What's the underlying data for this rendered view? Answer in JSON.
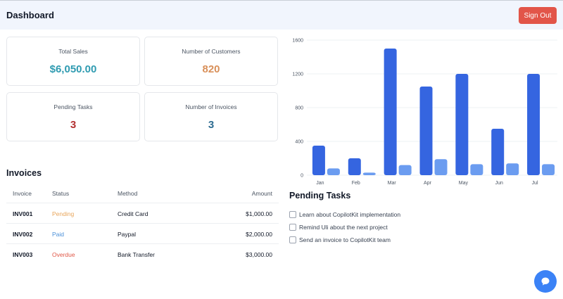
{
  "header": {
    "title": "Dashboard",
    "signout_label": "Sign Out"
  },
  "cards": [
    {
      "label": "Total Sales",
      "value": "$6,050.00",
      "color": "#2f9bb1"
    },
    {
      "label": "Number of Customers",
      "value": "820",
      "color": "#d9905a"
    },
    {
      "label": "Pending Tasks",
      "value": "3",
      "color": "#b33030"
    },
    {
      "label": "Number of Invoices",
      "value": "3",
      "color": "#2d6c91"
    }
  ],
  "invoices": {
    "title": "Invoices",
    "columns": [
      "Invoice",
      "Status",
      "Method",
      "Amount"
    ],
    "rows": [
      {
        "invoice": "INV001",
        "status": "Pending",
        "status_color": "#e8a55a",
        "method": "Credit Card",
        "amount": "$1,000.00"
      },
      {
        "invoice": "INV002",
        "status": "Paid",
        "status_color": "#4a90d9",
        "method": "Paypal",
        "amount": "$2,000.00"
      },
      {
        "invoice": "INV003",
        "status": "Overdue",
        "status_color": "#e05747",
        "method": "Bank Transfer",
        "amount": "$3,000.00"
      }
    ]
  },
  "chart_data": {
    "type": "bar",
    "categories": [
      "Jan",
      "Feb",
      "Mar",
      "Apr",
      "May",
      "Jun",
      "Jul"
    ],
    "series": [
      {
        "values": [
          350,
          200,
          1500,
          1050,
          1200,
          550,
          1200
        ],
        "color": "#3565e0"
      },
      {
        "values": [
          80,
          30,
          120,
          190,
          130,
          140,
          130
        ],
        "color": "#6b9cf0"
      }
    ],
    "yticks": [
      "0",
      "400",
      "800",
      "1200",
      "1600"
    ],
    "ylim": [
      0,
      1600
    ],
    "grid": true
  },
  "tasks": {
    "title": "Pending Tasks",
    "items": [
      {
        "label": "Learn about CopilotKit implementation",
        "checked": false
      },
      {
        "label": "Remind Uli about the next project",
        "checked": false
      },
      {
        "label": "Send an invoice to CopilotKit team",
        "checked": false
      }
    ]
  },
  "chat": {
    "icon": "chat-bubble-icon"
  }
}
